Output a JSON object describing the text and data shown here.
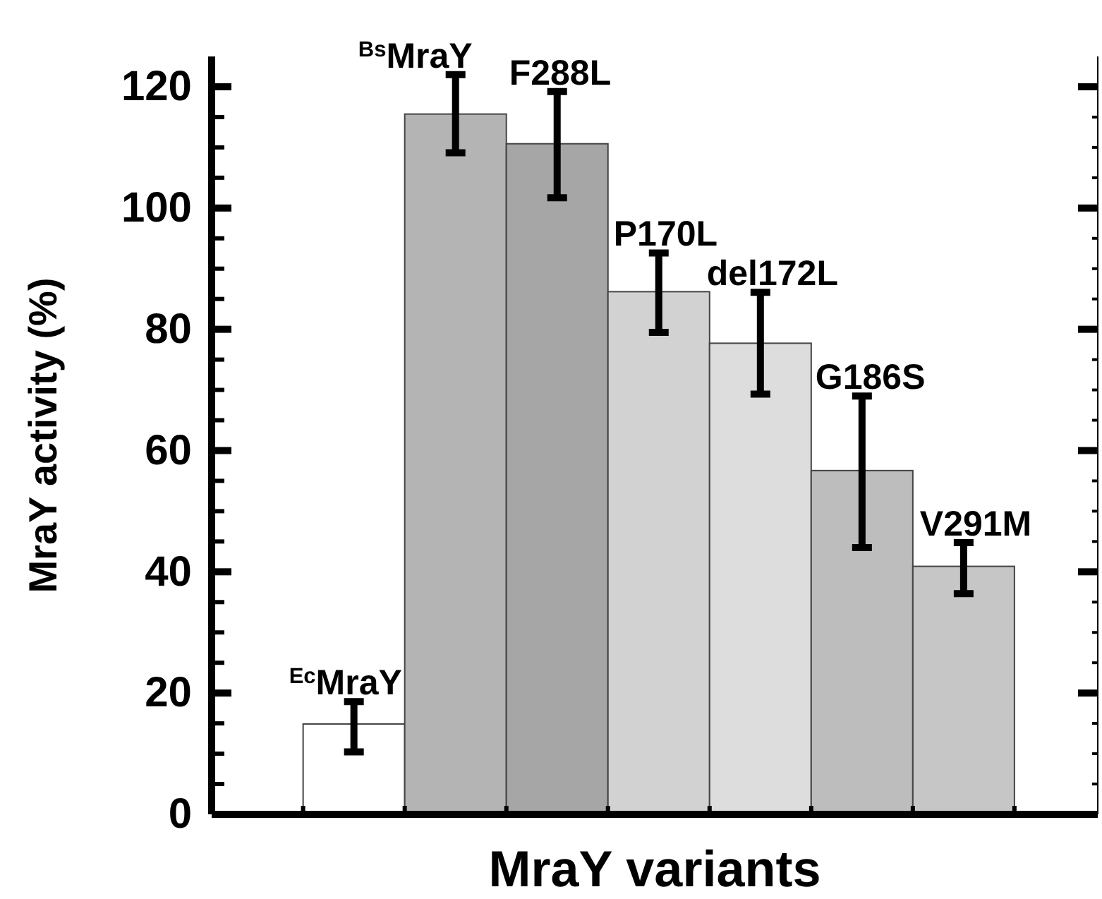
{
  "chart_data": {
    "type": "bar",
    "xlabel": "MraY variants",
    "ylabel": "MraY activity (%)",
    "categories": [
      null,
      null,
      null,
      null,
      null,
      null,
      null
    ],
    "values": [
      14.9,
      115.5,
      110.6,
      86.2,
      77.7,
      56.7,
      40.9
    ],
    "errors": [
      [
        10.3,
        18.6
      ],
      [
        109.1,
        122
      ],
      [
        101.7,
        119.2
      ],
      [
        79.5,
        92.6
      ],
      [
        69.3,
        86.1
      ],
      [
        44,
        69
      ],
      [
        36.4,
        44.8
      ]
    ],
    "colors": [
      "#ffffff",
      "#b4b4b4",
      "#a6a6a6",
      "#d2d2d2",
      "#dcdddc",
      "#bdbdbd",
      "#c6c6c6"
    ],
    "annotations": [
      {
        "text": "$^{Ec}$MraY",
        "y": 14.9
      },
      {
        "text": "$^{Bs}$MraY",
        "y": 115.5
      },
      {
        "text": "F288L",
        "y": 110.6
      },
      {
        "text": "P170L",
        "y": 86.2
      },
      {
        "text": "del172L",
        "y": 77.7
      },
      {
        "text": "G186S",
        "y": 56.7
      },
      {
        "text": "V291M",
        "y": 40.9
      }
    ],
    "ylim": [
      0,
      125
    ],
    "yticks": [
      0,
      {
        "value": 5,
        "label": null
      },
      {
        "value": 10,
        "label": null
      },
      {
        "value": 15,
        "label": null
      },
      20,
      {
        "value": 25,
        "label": null
      },
      {
        "value": 30,
        "label": null
      },
      {
        "value": 35,
        "label": null
      },
      40,
      {
        "value": 45,
        "label": null
      },
      {
        "value": 50,
        "label": null
      },
      {
        "value": 55,
        "label": null
      },
      60,
      {
        "value": 65,
        "label": null
      },
      {
        "value": 70,
        "label": null
      },
      {
        "value": 75,
        "label": null
      },
      80,
      {
        "value": 85,
        "label": null
      },
      {
        "value": 90,
        "label": null
      },
      {
        "value": 95,
        "label": null
      },
      100,
      {
        "value": 105,
        "label": null
      },
      {
        "value": 110,
        "label": null
      },
      {
        "value": 115,
        "label": null
      },
      120
    ],
    "tick_labels": "y",
    "grid": false
  }
}
